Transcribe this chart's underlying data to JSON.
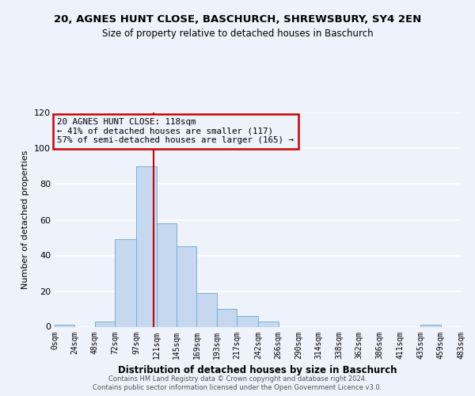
{
  "title": "20, AGNES HUNT CLOSE, BASCHURCH, SHREWSBURY, SY4 2EN",
  "subtitle": "Size of property relative to detached houses in Baschurch",
  "xlabel": "Distribution of detached houses by size in Baschurch",
  "ylabel": "Number of detached properties",
  "bar_color": "#c5d8f0",
  "bar_edge_color": "#7aafd4",
  "vline_x": 118,
  "vline_color": "#cc0000",
  "annotation_title": "20 AGNES HUNT CLOSE: 118sqm",
  "annotation_line1": "← 41% of detached houses are smaller (117)",
  "annotation_line2": "57% of semi-detached houses are larger (165) →",
  "annotation_box_color": "#cc0000",
  "bin_edges": [
    0,
    24,
    48,
    72,
    97,
    121,
    145,
    169,
    193,
    217,
    242,
    266,
    290,
    314,
    338,
    362,
    386,
    411,
    435,
    459,
    483
  ],
  "bin_counts": [
    1,
    0,
    3,
    49,
    90,
    58,
    45,
    19,
    10,
    6,
    3,
    0,
    0,
    0,
    0,
    0,
    0,
    0,
    1,
    0
  ],
  "ylim": [
    0,
    120
  ],
  "yticks": [
    0,
    20,
    40,
    60,
    80,
    100,
    120
  ],
  "tick_labels": [
    "0sqm",
    "24sqm",
    "48sqm",
    "72sqm",
    "97sqm",
    "121sqm",
    "145sqm",
    "169sqm",
    "193sqm",
    "217sqm",
    "242sqm",
    "266sqm",
    "290sqm",
    "314sqm",
    "338sqm",
    "362sqm",
    "386sqm",
    "411sqm",
    "435sqm",
    "459sqm",
    "483sqm"
  ],
  "footer_line1": "Contains HM Land Registry data © Crown copyright and database right 2024.",
  "footer_line2": "Contains public sector information licensed under the Open Government Licence v3.0.",
  "background_color": "#eef2fb"
}
